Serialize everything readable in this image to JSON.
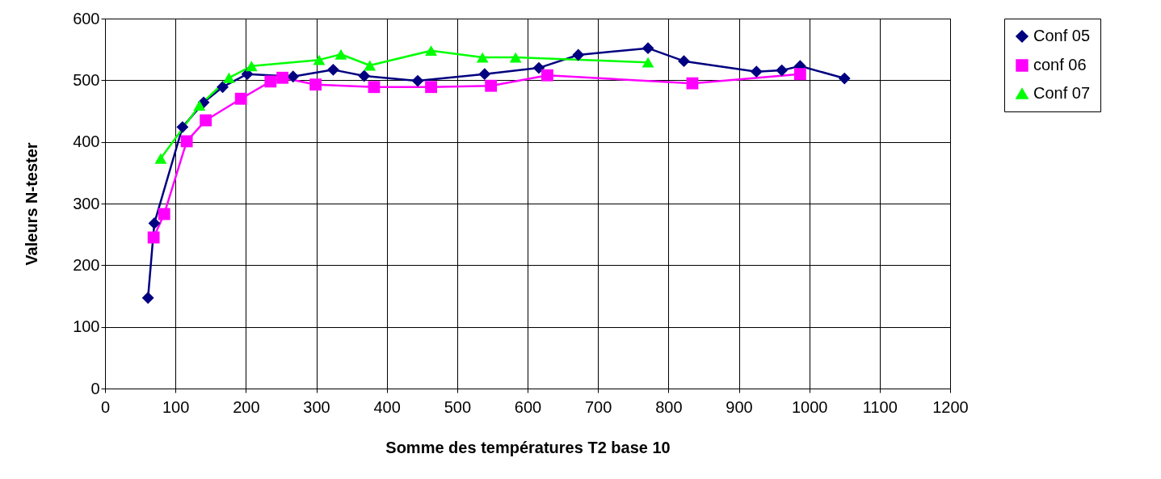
{
  "chart_data": {
    "type": "line",
    "xlabel": "Somme des températures T2 base 10",
    "ylabel": "Valeurs N-tester",
    "xlim": [
      0,
      1200
    ],
    "xticks": [
      0,
      100,
      200,
      300,
      400,
      500,
      600,
      700,
      800,
      900,
      1000,
      1100,
      1200
    ],
    "ylim": [
      0,
      600
    ],
    "yticks": [
      0,
      100,
      200,
      300,
      400,
      500,
      600
    ],
    "grid": true,
    "legend": "right",
    "series": [
      {
        "name": "Conf 05",
        "color": "#000080",
        "marker": "diamond",
        "x": [
          61,
          70,
          110,
          140,
          167,
          202,
          267,
          324,
          368,
          444,
          539,
          616,
          672,
          771,
          822,
          925,
          961,
          987,
          1050
        ],
        "values": [
          147,
          268,
          424,
          464,
          489,
          510,
          506,
          517,
          507,
          499,
          510,
          520,
          541,
          552,
          531,
          514,
          516,
          523,
          503
        ]
      },
      {
        "name": "conf 06",
        "color": "#ff00ff",
        "marker": "square",
        "x": [
          69,
          84,
          116,
          143,
          193,
          235,
          252,
          299,
          382,
          463,
          548,
          628,
          834,
          987
        ],
        "values": [
          245,
          283,
          401,
          435,
          470,
          498,
          504,
          493,
          489,
          489,
          491,
          508,
          495,
          510
        ]
      },
      {
        "name": "Conf 07",
        "color": "#00ff00",
        "marker": "triangle",
        "x": [
          79,
          134,
          176,
          208,
          304,
          335,
          376,
          463,
          536,
          583,
          771
        ],
        "values": [
          373,
          459,
          504,
          523,
          533,
          542,
          524,
          548,
          537,
          537,
          529
        ]
      }
    ]
  }
}
